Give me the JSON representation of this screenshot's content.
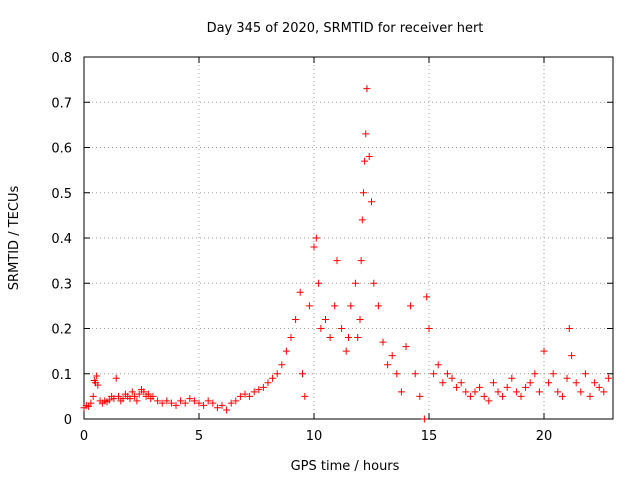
{
  "chart_data": {
    "type": "scatter",
    "title": "Day 345 of 2020, SRMTID for receiver hert",
    "xlabel": "GPS time / hours",
    "ylabel": "SRMTID / TECUs",
    "xlim": [
      0,
      23
    ],
    "ylim": [
      0,
      0.8
    ],
    "x_ticks": [
      0,
      5,
      10,
      15,
      20
    ],
    "x_tick_labels": [
      "0",
      "5",
      "10",
      "15",
      "20"
    ],
    "y_ticks": [
      0,
      0.1,
      0.2,
      0.3,
      0.4,
      0.5,
      0.6,
      0.7,
      0.8
    ],
    "y_tick_labels": [
      "0",
      "0.1",
      "0.2",
      "0.3",
      "0.4",
      "0.5",
      "0.6",
      "0.7",
      "0.8"
    ],
    "grid": true,
    "marker": "+",
    "color": "#ff0000",
    "series": [
      {
        "name": "SRMTID",
        "x": [
          0.0,
          0.1,
          0.2,
          0.3,
          0.4,
          0.45,
          0.5,
          0.55,
          0.6,
          0.7,
          0.8,
          0.9,
          1.0,
          1.1,
          1.2,
          1.3,
          1.4,
          1.5,
          1.6,
          1.7,
          1.8,
          1.9,
          2.0,
          2.1,
          2.2,
          2.3,
          2.4,
          2.5,
          2.6,
          2.7,
          2.8,
          2.9,
          3.0,
          3.2,
          3.4,
          3.6,
          3.8,
          4.0,
          4.2,
          4.4,
          4.6,
          4.8,
          5.0,
          5.2,
          5.4,
          5.6,
          5.8,
          6.0,
          6.2,
          6.4,
          6.6,
          6.8,
          7.0,
          7.2,
          7.4,
          7.6,
          7.8,
          8.0,
          8.2,
          8.4,
          8.6,
          8.8,
          9.0,
          9.2,
          9.4,
          9.5,
          9.6,
          9.8,
          10.0,
          10.1,
          10.2,
          10.3,
          10.5,
          10.7,
          10.9,
          11.0,
          11.2,
          11.4,
          11.5,
          11.6,
          11.8,
          11.9,
          12.0,
          12.05,
          12.1,
          12.15,
          12.2,
          12.25,
          12.3,
          12.4,
          12.5,
          12.6,
          12.8,
          13.0,
          13.2,
          13.4,
          13.6,
          13.8,
          14.0,
          14.2,
          14.4,
          14.6,
          14.8,
          14.9,
          15.0,
          15.2,
          15.4,
          15.6,
          15.8,
          16.0,
          16.2,
          16.4,
          16.6,
          16.8,
          17.0,
          17.2,
          17.4,
          17.6,
          17.8,
          18.0,
          18.2,
          18.4,
          18.6,
          18.8,
          19.0,
          19.2,
          19.4,
          19.6,
          19.8,
          20.0,
          20.2,
          20.4,
          20.6,
          20.8,
          21.0,
          21.1,
          21.2,
          21.4,
          21.6,
          21.8,
          22.0,
          22.2,
          22.4,
          22.6,
          22.8
        ],
        "y": [
          0.025,
          0.03,
          0.028,
          0.035,
          0.05,
          0.085,
          0.08,
          0.095,
          0.075,
          0.04,
          0.035,
          0.04,
          0.038,
          0.042,
          0.05,
          0.045,
          0.09,
          0.05,
          0.04,
          0.045,
          0.055,
          0.05,
          0.045,
          0.06,
          0.05,
          0.04,
          0.055,
          0.065,
          0.06,
          0.05,
          0.055,
          0.045,
          0.05,
          0.04,
          0.035,
          0.04,
          0.035,
          0.03,
          0.04,
          0.035,
          0.045,
          0.04,
          0.035,
          0.03,
          0.04,
          0.035,
          0.025,
          0.03,
          0.02,
          0.035,
          0.04,
          0.05,
          0.055,
          0.05,
          0.06,
          0.065,
          0.07,
          0.08,
          0.09,
          0.1,
          0.12,
          0.15,
          0.18,
          0.22,
          0.28,
          0.1,
          0.05,
          0.25,
          0.38,
          0.4,
          0.3,
          0.2,
          0.22,
          0.18,
          0.25,
          0.35,
          0.2,
          0.15,
          0.18,
          0.25,
          0.3,
          0.18,
          0.22,
          0.35,
          0.44,
          0.5,
          0.57,
          0.63,
          0.73,
          0.58,
          0.48,
          0.3,
          0.25,
          0.17,
          0.12,
          0.14,
          0.1,
          0.06,
          0.16,
          0.25,
          0.1,
          0.05,
          0.0,
          0.27,
          0.2,
          0.1,
          0.12,
          0.08,
          0.1,
          0.09,
          0.07,
          0.08,
          0.06,
          0.05,
          0.06,
          0.07,
          0.05,
          0.04,
          0.08,
          0.06,
          0.05,
          0.07,
          0.09,
          0.06,
          0.05,
          0.07,
          0.08,
          0.1,
          0.06,
          0.15,
          0.08,
          0.1,
          0.06,
          0.05,
          0.09,
          0.2,
          0.14,
          0.08,
          0.06,
          0.1,
          0.05,
          0.08,
          0.07,
          0.06,
          0.09
        ]
      }
    ]
  }
}
